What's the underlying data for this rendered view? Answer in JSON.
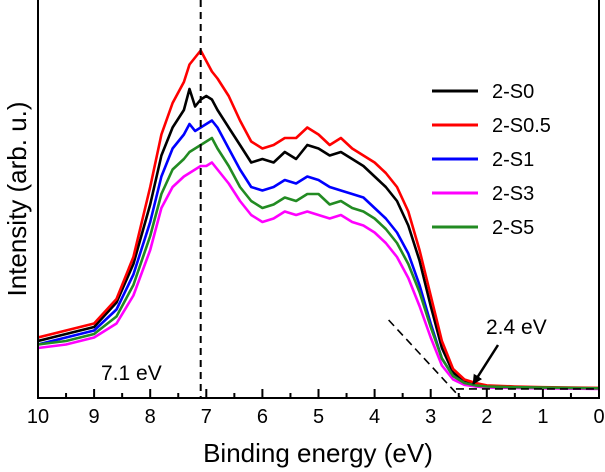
{
  "chart_data": {
    "type": "line",
    "title": "",
    "xlabel": "Binding energy (eV)",
    "ylabel": "Intensity (arb. u.)",
    "xlim": [
      10,
      0
    ],
    "x_reversed": true,
    "ylim": [
      0,
      100
    ],
    "y_ticks_shown": false,
    "x_ticks": [
      10,
      9,
      8,
      7,
      6,
      5,
      4,
      3,
      2,
      1,
      0
    ],
    "x_tick_labels": [
      "10",
      "9",
      "8",
      "7",
      "6",
      "5",
      "4",
      "3",
      "2",
      "1",
      "0"
    ],
    "grid": false,
    "legend_position": "right",
    "series": [
      {
        "name": "2-S0",
        "color": "#000000",
        "x": [
          10.0,
          9.5,
          9.0,
          8.6,
          8.3,
          8.0,
          7.8,
          7.6,
          7.4,
          7.3,
          7.2,
          7.1,
          7.0,
          6.9,
          6.8,
          6.6,
          6.4,
          6.2,
          6.0,
          5.8,
          5.6,
          5.4,
          5.2,
          5.0,
          4.8,
          4.6,
          4.4,
          4.2,
          4.0,
          3.8,
          3.6,
          3.4,
          3.2,
          3.0,
          2.8,
          2.6,
          2.4,
          2.2,
          2.0,
          1.5,
          1.0,
          0.5,
          0.0
        ],
        "y": [
          14,
          16,
          18,
          25,
          36,
          53,
          67,
          75,
          80,
          86,
          81,
          83,
          84,
          83,
          80,
          75,
          70,
          65,
          66,
          65,
          68,
          66,
          70,
          69,
          67,
          68,
          66,
          64,
          61,
          58,
          54,
          47,
          37,
          24,
          12,
          5,
          2.5,
          1.5,
          1.0,
          0.8,
          0.7,
          0.6,
          0.5
        ]
      },
      {
        "name": "2-S0.5",
        "color": "#ff0000",
        "x": [
          10.0,
          9.5,
          9.0,
          8.6,
          8.3,
          8.0,
          7.8,
          7.6,
          7.4,
          7.3,
          7.2,
          7.1,
          7.0,
          6.9,
          6.8,
          6.6,
          6.4,
          6.2,
          6.0,
          5.8,
          5.6,
          5.4,
          5.2,
          5.0,
          4.8,
          4.6,
          4.4,
          4.2,
          4.0,
          3.8,
          3.6,
          3.4,
          3.2,
          3.0,
          2.8,
          2.6,
          2.4,
          2.2,
          2.0,
          1.5,
          1.0,
          0.5,
          0.0
        ],
        "y": [
          15,
          17,
          19,
          26,
          38,
          58,
          73,
          82,
          88,
          93,
          95,
          97,
          94,
          91,
          89,
          84,
          77,
          71,
          69,
          70,
          72,
          72,
          75,
          73,
          70,
          72,
          69,
          67,
          65,
          62,
          58,
          51,
          40,
          27,
          14,
          6,
          3,
          2,
          1.3,
          1.0,
          0.8,
          0.7,
          0.6
        ]
      },
      {
        "name": "2-S1",
        "color": "#0000ff",
        "x": [
          10.0,
          9.5,
          9.0,
          8.6,
          8.3,
          8.0,
          7.8,
          7.6,
          7.4,
          7.3,
          7.2,
          7.1,
          7.0,
          6.9,
          6.8,
          6.6,
          6.4,
          6.2,
          6.0,
          5.8,
          5.6,
          5.4,
          5.2,
          5.0,
          4.8,
          4.6,
          4.4,
          4.2,
          4.0,
          3.8,
          3.6,
          3.4,
          3.2,
          3.0,
          2.8,
          2.6,
          2.4,
          2.2,
          2.0,
          1.5,
          1.0,
          0.5,
          0.0
        ],
        "y": [
          13,
          15,
          17,
          23,
          33,
          48,
          61,
          69,
          73,
          76,
          74,
          75,
          76,
          77,
          75,
          69,
          63,
          58,
          57,
          58,
          60,
          59,
          61,
          60,
          58,
          57,
          56,
          55,
          52,
          49,
          45,
          39,
          30,
          19,
          9,
          4,
          2,
          1.2,
          0.9,
          0.7,
          0.6,
          0.5,
          0.4
        ]
      },
      {
        "name": "2-S3",
        "color": "#ff00ff",
        "x": [
          10.0,
          9.5,
          9.0,
          8.6,
          8.3,
          8.0,
          7.8,
          7.6,
          7.4,
          7.3,
          7.2,
          7.1,
          7.0,
          6.9,
          6.8,
          6.6,
          6.4,
          6.2,
          6.0,
          5.8,
          5.6,
          5.4,
          5.2,
          5.0,
          4.8,
          4.6,
          4.4,
          4.2,
          4.0,
          3.8,
          3.6,
          3.4,
          3.2,
          3.0,
          2.8,
          2.6,
          2.4,
          2.2,
          2.0,
          1.5,
          1.0,
          0.5,
          0.0
        ],
        "y": [
          12,
          13,
          15,
          19,
          27,
          40,
          52,
          58,
          61,
          62,
          63,
          64,
          64,
          65,
          63,
          59,
          54,
          50,
          48,
          49,
          51,
          50,
          51,
          50,
          49,
          50,
          48,
          47,
          45,
          42,
          38,
          32,
          24,
          15,
          7,
          3,
          1.5,
          1.0,
          0.7,
          0.6,
          0.5,
          0.4,
          0.3
        ]
      },
      {
        "name": "2-S5",
        "color": "#228b22",
        "x": [
          10.0,
          9.5,
          9.0,
          8.6,
          8.3,
          8.0,
          7.8,
          7.6,
          7.4,
          7.3,
          7.2,
          7.1,
          7.0,
          6.9,
          6.8,
          6.6,
          6.4,
          6.2,
          6.0,
          5.8,
          5.6,
          5.4,
          5.2,
          5.0,
          4.8,
          4.6,
          4.4,
          4.2,
          4.0,
          3.8,
          3.6,
          3.4,
          3.2,
          3.0,
          2.8,
          2.6,
          2.4,
          2.2,
          2.0,
          1.5,
          1.0,
          0.5,
          0.0
        ],
        "y": [
          13,
          14,
          16,
          21,
          30,
          44,
          56,
          63,
          66,
          68,
          69,
          70,
          71,
          72,
          69,
          64,
          58,
          54,
          52,
          53,
          55,
          54,
          56,
          56,
          53,
          54,
          52,
          51,
          49,
          46,
          42,
          36,
          28,
          18,
          9,
          4,
          2,
          1.3,
          1.0,
          0.8,
          0.7,
          0.6,
          0.5
        ]
      }
    ],
    "reference_lines": [
      {
        "orientation": "vertical",
        "x": 7.1,
        "style": "dashed",
        "label": "7.1 eV"
      }
    ],
    "extrapolation_lines": [
      {
        "x": [
          3.75,
          2.25
        ],
        "y": [
          20,
          -6
        ],
        "style": "dashed"
      },
      {
        "x": [
          2.55,
          0.0
        ],
        "y": [
          0.3,
          0.3
        ],
        "style": "dashed"
      }
    ],
    "annotations": [
      {
        "text": "7.1 eV",
        "x": 8.4,
        "y": 6
      },
      {
        "text": "2.4 eV",
        "x": 1.3,
        "y": 17,
        "arrow_to": {
          "x": 2.35,
          "y": 0.3
        }
      }
    ]
  }
}
